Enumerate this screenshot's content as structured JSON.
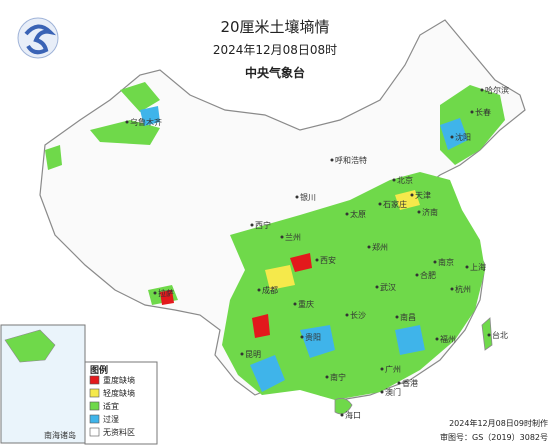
{
  "header": {
    "title": "20厘米土壤墒情",
    "time": "2024年12月08日08时",
    "agency": "中央气象台"
  },
  "legend": {
    "title": "图例",
    "items": [
      {
        "label": "重度缺墒",
        "color": "#e3191c"
      },
      {
        "label": "轻度缺墒",
        "color": "#f5e94b"
      },
      {
        "label": "适宜",
        "color": "#6fd94a"
      },
      {
        "label": "过湿",
        "color": "#3fb4ea"
      },
      {
        "label": "无资料区",
        "color": "#ffffff"
      }
    ]
  },
  "cities": [
    "哈尔滨",
    "长春",
    "沈阳",
    "乌鲁木齐",
    "呼和浩特",
    "北京",
    "天津",
    "石家庄",
    "太原",
    "济南",
    "银川",
    "西宁",
    "兰州",
    "西安",
    "郑州",
    "拉萨",
    "成都",
    "重庆",
    "贵阳",
    "昆明",
    "长沙",
    "武汉",
    "南京",
    "合肥",
    "上海",
    "杭州",
    "南昌",
    "福州",
    "台北",
    "广州",
    "南宁",
    "香港",
    "澳门",
    "海口"
  ],
  "inset": {
    "label": "南海诸岛"
  },
  "footer": {
    "made": "2024年12月08日09时制作",
    "approval": "审图号：GS（2019）3082号"
  }
}
